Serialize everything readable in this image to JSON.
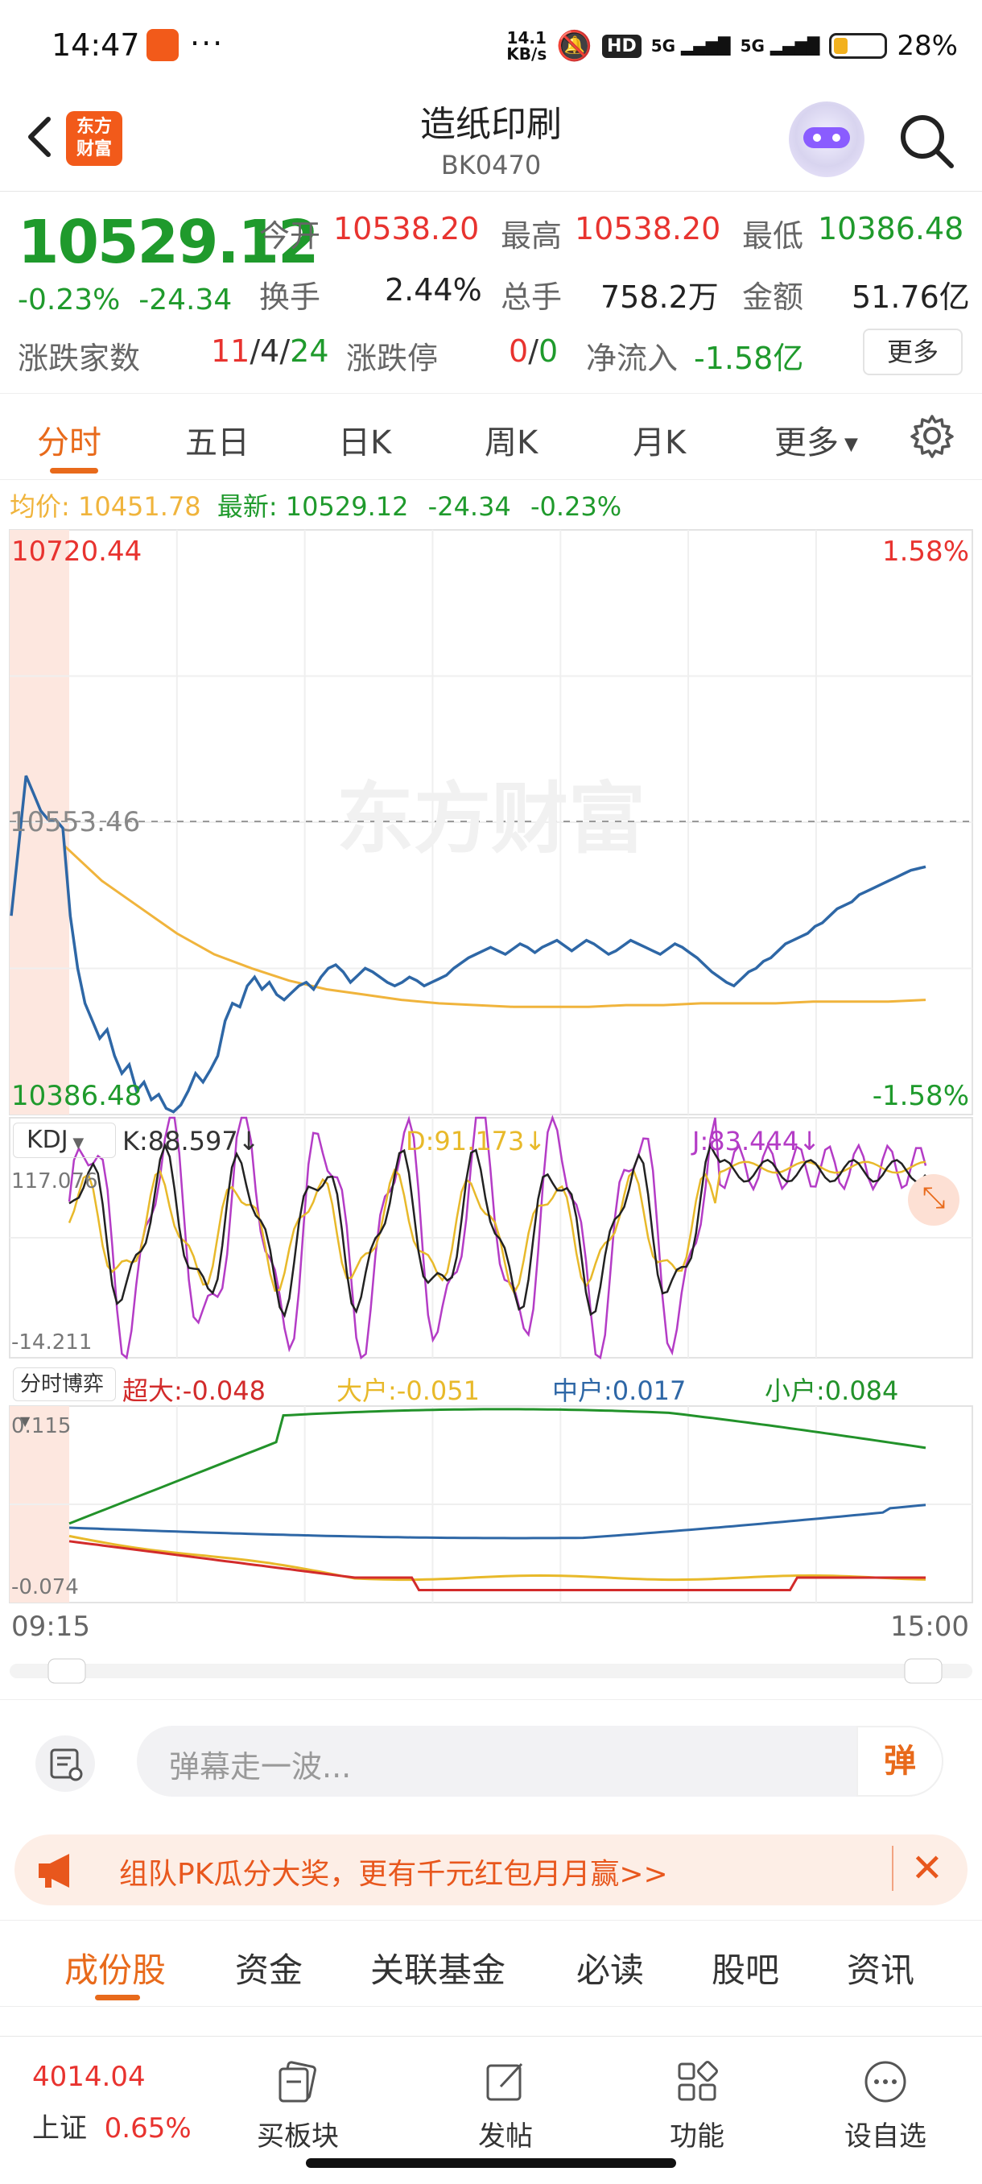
{
  "status_bar": {
    "time": "14:47",
    "more": "···",
    "net_speed_value": "14.1",
    "net_speed_unit": "KB/s",
    "hd": "HD",
    "sig1": "5G",
    "sig2": "5G",
    "battery": "28%",
    "battery_level": 0.28
  },
  "header": {
    "logo_line1": "东方",
    "logo_line2": "财富",
    "title": "造纸印刷",
    "code": "BK0470"
  },
  "quote": {
    "price": "10529.12",
    "pct": "-0.23%",
    "change": "-24.34",
    "open_label": "今开",
    "open": "10538.20",
    "high_label": "最高",
    "high": "10538.20",
    "low_label": "最低",
    "low": "10386.48",
    "turnover_label": "换手",
    "turnover": "2.44%",
    "volume_label": "总手",
    "volume": "758.2万",
    "amount_label": "金额",
    "amount": "51.76亿",
    "breadth_label": "涨跌家数",
    "breadth_up": "11",
    "breadth_flat": "4",
    "breadth_down": "24",
    "slash": "/",
    "limit_label": "涨跌停",
    "limit_up": "0",
    "limit_down": "0",
    "inflow_label": "净流入",
    "inflow": "-1.58亿",
    "more_button": "更多"
  },
  "chart_tabs": [
    "分时",
    "五日",
    "日K",
    "周K",
    "月K",
    "更多"
  ],
  "avg_line": {
    "avg_label": "均价:",
    "avg": "10451.78",
    "latest_label": "最新:",
    "latest": "10529.12",
    "chg": "-24.34",
    "pct": "-0.23%"
  },
  "kdj": {
    "selector": "KDJ",
    "k": "K:88.597↓",
    "d": "D:91.173↓",
    "j": "J:83.444↓",
    "top": "117.076",
    "bottom": "-14.211"
  },
  "flow": {
    "selector": "分时博弈",
    "super": "超大:-0.048",
    "large": "大户:-0.051",
    "mid": "中户:0.017",
    "small": "小户:0.084",
    "top": "0.115",
    "bottom": "-0.074"
  },
  "time_axis": {
    "start": "09:15",
    "end": "15:00"
  },
  "colors": {
    "up": "#e8332f",
    "down": "#1f9a2c",
    "accent": "#e86a1b",
    "price_line": "#2e67a6",
    "avg_line": "#f0b43c",
    "k_line": "#222222",
    "d_line": "#e8b92a",
    "j_line": "#b43cc6",
    "super": "#d22b2b",
    "large": "#e8b92a",
    "mid": "#2e67a6",
    "small": "#22922a"
  },
  "chart_data": [
    {
      "type": "line",
      "name": "intraday",
      "y_top": 10720.44,
      "y_bottom": 10386.48,
      "y_base": 10553.46,
      "y_labels": [
        "10720.44",
        "10553.46",
        "10386.48"
      ],
      "pct_labels": [
        "1.58%",
        "-1.58%"
      ],
      "watermark": "东方财富",
      "points_count": 160,
      "price": [
        10500,
        10540,
        10580,
        10570,
        10560,
        10555,
        10555,
        10550,
        10500,
        10470,
        10450,
        10440,
        10430,
        10435,
        10420,
        10410,
        10415,
        10400,
        10405,
        10395,
        10398,
        10390,
        10388,
        10392,
        10400,
        10410,
        10405,
        10412,
        10420,
        10440,
        10450,
        10448,
        10460,
        10465,
        10458,
        10462,
        10455,
        10452,
        10456,
        10460,
        10462,
        10458,
        10465,
        10470,
        10472,
        10468,
        10462,
        10466,
        10470,
        10468,
        10465,
        10462,
        10460,
        10462,
        10465,
        10463,
        10460,
        10462,
        10464,
        10466,
        10470,
        10473,
        10476,
        10478,
        10480,
        10482,
        10480,
        10478,
        10481,
        10484,
        10482,
        10479,
        10482,
        10484,
        10486,
        10483,
        10480,
        10483,
        10486,
        10484,
        10481,
        10478,
        10480,
        10483,
        10486,
        10484,
        10482,
        10480,
        10478,
        10481,
        10484,
        10482,
        10479,
        10476,
        10472,
        10468,
        10465,
        10462,
        10460,
        10464,
        10468,
        10470,
        10474,
        10476,
        10480,
        10484,
        10486,
        10488,
        10490,
        10494,
        10496,
        10500,
        10504,
        10506,
        10508,
        10512,
        10514,
        10516,
        10518,
        10520,
        10522,
        10524,
        10526,
        10527,
        10528,
        10529,
        10529,
        10529,
        10529,
        10529,
        10529,
        10529,
        10529,
        10529,
        10529,
        10529,
        10529,
        10529,
        10529,
        10529,
        10529,
        10529,
        10529,
        10529,
        10529,
        10529,
        10529,
        10529,
        10529,
        10529,
        10529,
        10529,
        10529,
        10529,
        10529,
        10529,
        10529,
        10529,
        10529
      ],
      "average": [
        10540,
        10520,
        10505,
        10490,
        10478,
        10470,
        10463,
        10458,
        10455,
        10452,
        10450,
        10449,
        10448,
        10448,
        10448,
        10449,
        10449,
        10450,
        10450,
        10450,
        10451,
        10451,
        10451,
        10452
      ]
    },
    {
      "type": "line",
      "name": "KDJ",
      "ylim": [
        -14.211,
        117.076
      ],
      "series": [
        "K",
        "D",
        "J"
      ]
    },
    {
      "type": "line",
      "name": "分时博弈",
      "ylim": [
        -0.074,
        0.115
      ],
      "series": [
        "超大",
        "大户",
        "中户",
        "小户"
      ],
      "end_values": [
        -0.048,
        -0.051,
        0.017,
        0.084
      ]
    }
  ],
  "comment_bar": {
    "placeholder": "弹幕走一波...",
    "danmu_button": "弹"
  },
  "promo": {
    "text": "组队PK瓜分大奖，更有千元红包月月赢>>",
    "close": "✕"
  },
  "sub_tabs": [
    "成份股",
    "资金",
    "关联基金",
    "必读",
    "股吧",
    "资讯"
  ],
  "bottom_nav": {
    "index_value": "4014.04",
    "index_name": "上证",
    "index_pct": "0.65%",
    "buy": "买板块",
    "post": "发帖",
    "func": "功能",
    "watch": "设自选"
  }
}
